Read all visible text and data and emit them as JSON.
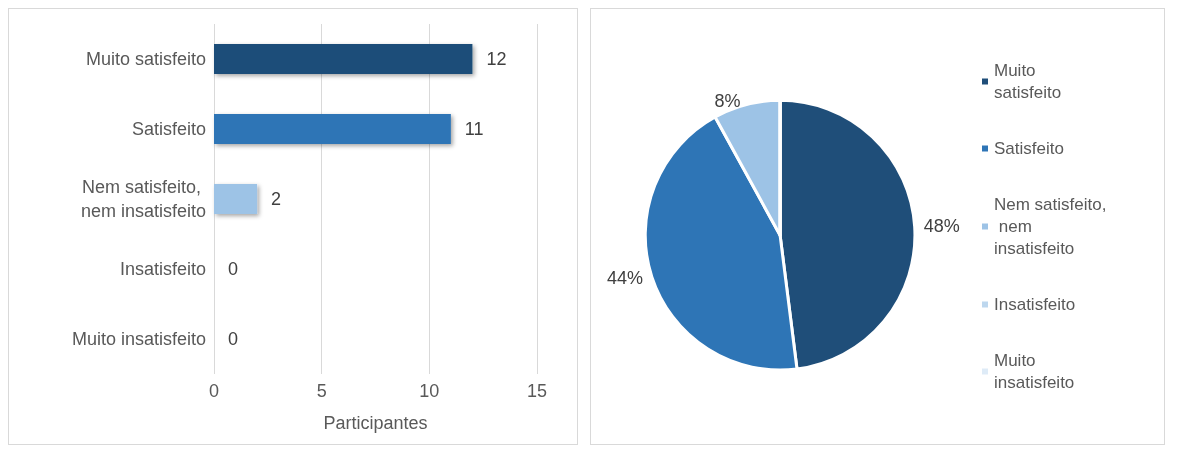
{
  "chart_data": [
    {
      "type": "bar",
      "orientation": "horizontal",
      "categories": [
        "Muito satisfeito",
        "Satisfeito",
        "Nem satisfeito, nem insatisfeito",
        "Insatisfeito",
        "Muito insatisfeito"
      ],
      "values": [
        12,
        11,
        2,
        0,
        0
      ],
      "colors": [
        "#1f4e79",
        "#2e75b6",
        "#9dc3e6",
        "#bdd7ee",
        "#deebf7"
      ],
      "xlim": [
        0,
        15
      ],
      "xticks": [
        0,
        5,
        10,
        15
      ],
      "xlabel": "Participantes",
      "grid": "x",
      "data_labels": true
    },
    {
      "type": "pie",
      "categories": [
        "Muito satisfeito",
        "Satisfeito",
        "Nem satisfeito, nem insatisfeito",
        "Insatisfeito",
        "Muito insatisfeito"
      ],
      "values": [
        48,
        44,
        8,
        0,
        0
      ],
      "colors": [
        "#1f4e79",
        "#2e75b6",
        "#9dc3e6",
        "#bdd7ee",
        "#deebf7"
      ],
      "value_labels": [
        "48%",
        "44%",
        "8%",
        null,
        null
      ],
      "legend": "right"
    }
  ]
}
